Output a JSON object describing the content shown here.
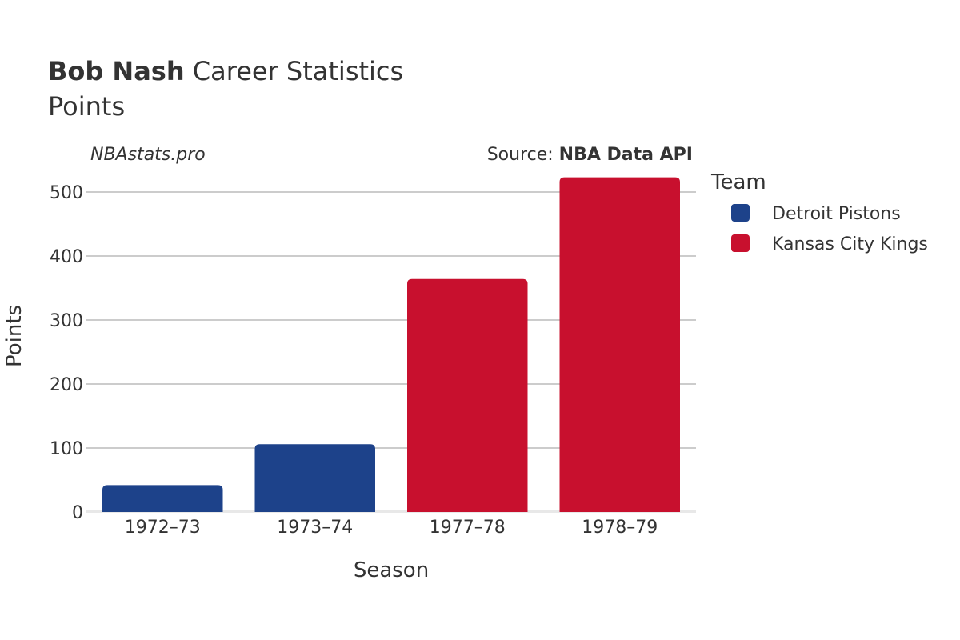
{
  "title": {
    "bold": "Bob Nash",
    "rest": " Career Statistics"
  },
  "subtitle": "Points",
  "credit_left": "NBAstats.pro",
  "credit_right": {
    "prefix": "Source: ",
    "bold": "NBA Data API"
  },
  "legend": {
    "title": "Team",
    "items": [
      {
        "label": "Detroit Pistons",
        "color": "#1d428a"
      },
      {
        "label": "Kansas City Kings",
        "color": "#c8102e"
      }
    ]
  },
  "chart_data": {
    "type": "bar",
    "xlabel": "Season",
    "ylabel": "Points",
    "ylim": [
      0,
      540
    ],
    "yticks": [
      0,
      100,
      200,
      300,
      400,
      500
    ],
    "categories": [
      "1972–73",
      "1973–74",
      "1977–78",
      "1978–79"
    ],
    "values": [
      42,
      106,
      364,
      523
    ],
    "teams": [
      "Detroit Pistons",
      "Detroit Pistons",
      "Kansas City Kings",
      "Kansas City Kings"
    ],
    "grid": true,
    "legend_position": "right"
  }
}
